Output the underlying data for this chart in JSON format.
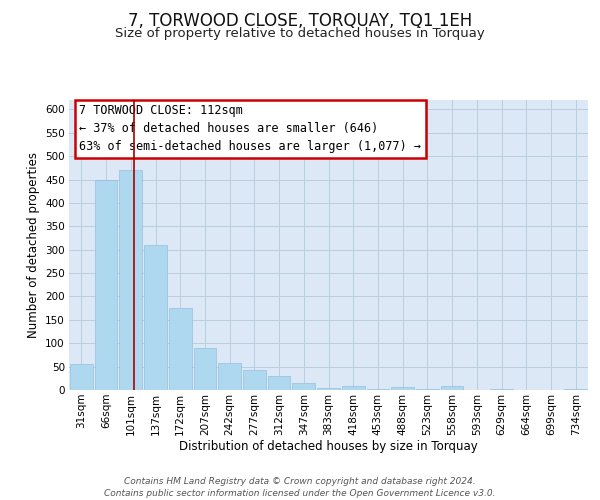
{
  "title": "7, TORWOOD CLOSE, TORQUAY, TQ1 1EH",
  "subtitle": "Size of property relative to detached houses in Torquay",
  "xlabel": "Distribution of detached houses by size in Torquay",
  "ylabel": "Number of detached properties",
  "categories": [
    "31sqm",
    "66sqm",
    "101sqm",
    "137sqm",
    "172sqm",
    "207sqm",
    "242sqm",
    "277sqm",
    "312sqm",
    "347sqm",
    "383sqm",
    "418sqm",
    "453sqm",
    "488sqm",
    "523sqm",
    "558sqm",
    "593sqm",
    "629sqm",
    "664sqm",
    "699sqm",
    "734sqm"
  ],
  "values": [
    55,
    450,
    470,
    310,
    175,
    90,
    58,
    42,
    30,
    15,
    5,
    8,
    2,
    7,
    2,
    8,
    0,
    2,
    0,
    0,
    2
  ],
  "bar_color": "#add8f0",
  "vline_x": 2.15,
  "vline_color": "#aa0000",
  "ylim": [
    0,
    620
  ],
  "yticks": [
    0,
    50,
    100,
    150,
    200,
    250,
    300,
    350,
    400,
    450,
    500,
    550,
    600
  ],
  "annotation_title": "7 TORWOOD CLOSE: 112sqm",
  "annotation_line1": "← 37% of detached houses are smaller (646)",
  "annotation_line2": "63% of semi-detached houses are larger (1,077) →",
  "annotation_box_color": "#ffffff",
  "annotation_box_edge": "#cc0000",
  "footer_line1": "Contains HM Land Registry data © Crown copyright and database right 2024.",
  "footer_line2": "Contains public sector information licensed under the Open Government Licence v3.0.",
  "background_color": "#ffffff",
  "plot_bg_color": "#dce8f5",
  "grid_color": "#b8cfe0",
  "title_fontsize": 12,
  "subtitle_fontsize": 9.5,
  "axis_label_fontsize": 8.5,
  "tick_fontsize": 7.5,
  "annotation_fontsize": 8.5,
  "footer_fontsize": 6.5
}
